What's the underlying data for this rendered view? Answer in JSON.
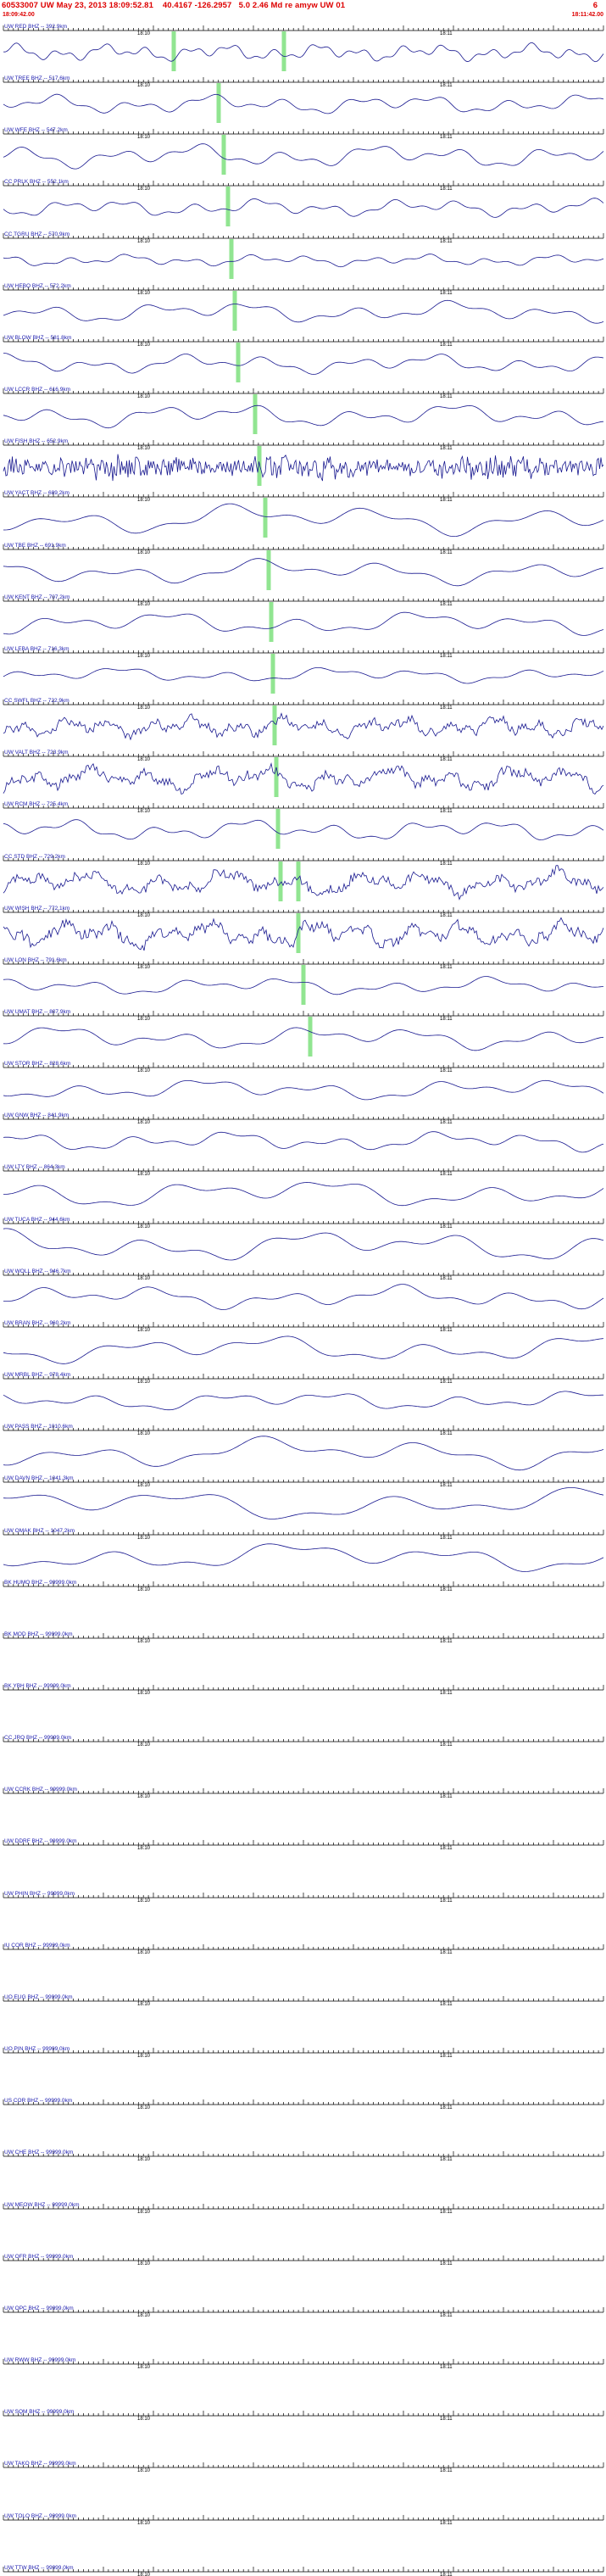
{
  "header": {
    "event_line": "60533007 UW May 23, 2013 18:09:52.81    40.4167 -126.2957   5.0 2.46 Md re amyw UW 01",
    "trailing_flag": "6",
    "start_time": "18:09:42.00",
    "end_time": "18:11:42.00"
  },
  "timeline": {
    "minute_labels": [
      "18:10",
      "18:11"
    ],
    "window_seconds": 120
  },
  "colors": {
    "trace": "#18188f",
    "label": "#2020b0",
    "ruler": "#000000",
    "pick": "#7ee07e",
    "background": "#ffffff",
    "header_red": "#dd0000"
  },
  "channels": [
    {
      "label": "UW RED BHZ -- 392.9km",
      "style": "smooth",
      "amp": 9,
      "freq": 14,
      "picks": [
        205,
        335
      ]
    },
    {
      "label": "UW TREE BHZ -- 517.6km",
      "style": "smooth",
      "amp": 10,
      "freq": 8,
      "picks": [
        258
      ]
    },
    {
      "label": "UW WFE BHZ -- 547.2km",
      "style": "smooth",
      "amp": 12,
      "freq": 7,
      "picks": [
        264
      ]
    },
    {
      "label": "CC PRLK BHZ -- 552.1km",
      "style": "smooth",
      "amp": 9,
      "freq": 9,
      "picks": [
        269
      ]
    },
    {
      "label": "CC TGRU BHZ -- 570.9km",
      "style": "smooth",
      "amp": 6,
      "freq": 10,
      "picks": [
        273
      ]
    },
    {
      "label": "UW HEBO BHZ -- 572.2km",
      "style": "smooth",
      "amp": 11,
      "freq": 6,
      "picks": [
        277
      ]
    },
    {
      "label": "UW BLOW BHZ -- 581.8km",
      "style": "smooth",
      "amp": 10,
      "freq": 7,
      "picks": [
        281
      ]
    },
    {
      "label": "UW LCCR BHZ -- 616.9km",
      "style": "smooth",
      "amp": 12,
      "freq": 6,
      "picks": [
        301
      ]
    },
    {
      "label": "UW FISH BHZ -- 652.9km",
      "style": "hf",
      "amp": 13,
      "freq": 40,
      "picks": [
        306
      ]
    },
    {
      "label": "UW YACT BHZ -- 689.2km",
      "style": "smooth",
      "amp": 16,
      "freq": 4,
      "picks": [
        313
      ]
    },
    {
      "label": "UW TBE BHZ -- 691.9km",
      "style": "smooth",
      "amp": 13,
      "freq": 4.5,
      "picks": [
        317
      ]
    },
    {
      "label": "UW KENT BHZ -- 707.2km",
      "style": "smooth",
      "amp": 12,
      "freq": 5,
      "picks": [
        320
      ]
    },
    {
      "label": "UW LEBA BHZ -- 716.3km",
      "style": "smooth",
      "amp": 8,
      "freq": 6,
      "picks": [
        322
      ]
    },
    {
      "label": "CC SWFL BHZ -- 722.9km",
      "style": "noisy",
      "amp": 10,
      "freq": 14,
      "picks": [
        324
      ]
    },
    {
      "label": "UW VALT BHZ -- 723.9km",
      "style": "noisy",
      "amp": 12,
      "freq": 10,
      "picks": [
        326
      ]
    },
    {
      "label": "UW RCM BHZ -- 725.4km",
      "style": "smooth",
      "amp": 11,
      "freq": 7,
      "picks": [
        328
      ]
    },
    {
      "label": "CC STD BHZ -- 729.2km",
      "style": "noisy",
      "amp": 12,
      "freq": 9,
      "picks": [
        331,
        352
      ]
    },
    {
      "label": "UW WISH BHZ -- 772.1km",
      "style": "noisy",
      "amp": 13,
      "freq": 12,
      "picks": [
        352
      ]
    },
    {
      "label": "UW LON BHZ -- 791.6km",
      "style": "smooth",
      "amp": 9,
      "freq": 6,
      "picks": [
        358
      ]
    },
    {
      "label": "UW UMAT BHZ -- 807.9km",
      "style": "smooth",
      "amp": 12,
      "freq": 5,
      "picks": [
        366
      ]
    },
    {
      "label": "UW STOR BHZ -- 828.6km",
      "style": "smooth",
      "amp": 11,
      "freq": 5,
      "picks": []
    },
    {
      "label": "UW GNW BHZ -- 841.9km",
      "style": "smooth",
      "amp": 10,
      "freq": 6,
      "picks": []
    },
    {
      "label": "UW LTY BHZ -- 864.3km",
      "style": "smooth",
      "amp": 15,
      "freq": 4,
      "picks": []
    },
    {
      "label": "UW TUCA BHZ -- 944.6km",
      "style": "smooth",
      "amp": 16,
      "freq": 4,
      "picks": []
    },
    {
      "label": "UW WOLL BHZ -- 946.7km",
      "style": "smooth",
      "amp": 12,
      "freq": 5,
      "picks": []
    },
    {
      "label": "UW BRAN BHZ -- 960.2km",
      "style": "smooth",
      "amp": 14,
      "freq": 4,
      "picks": []
    },
    {
      "label": "UW MRBL BHZ -- 978.4km",
      "style": "smooth",
      "amp": 10,
      "freq": 5,
      "picks": []
    },
    {
      "label": "UW PASS BHZ -- 1010.6km",
      "style": "smooth",
      "amp": 16,
      "freq": 3.5,
      "picks": []
    },
    {
      "label": "UW DAVN BHZ -- 1041.3km",
      "style": "smooth",
      "amp": 17,
      "freq": 3,
      "picks": []
    },
    {
      "label": "UW OMAK BHZ -- 1047.2km",
      "style": "smooth",
      "amp": 15,
      "freq": 3.5,
      "picks": []
    },
    {
      "label": "BK HUMO BHZ -- 99999.0km",
      "style": "flat",
      "amp": 0,
      "freq": 0,
      "picks": []
    },
    {
      "label": "BK MOD BHZ -- 99999.0km",
      "style": "flat",
      "amp": 0,
      "freq": 0,
      "picks": []
    },
    {
      "label": "BK YBH BHZ -- 99999.0km",
      "style": "flat",
      "amp": 0,
      "freq": 0,
      "picks": []
    },
    {
      "label": "CC JRO BHZ -- 99999.0km",
      "style": "flat",
      "amp": 0,
      "freq": 0,
      "picks": []
    },
    {
      "label": "UW CCRK BHZ -- 99999.0km",
      "style": "flat",
      "amp": 0,
      "freq": 0,
      "picks": []
    },
    {
      "label": "UW DDRF BHZ -- 99999.0km",
      "style": "flat",
      "amp": 0,
      "freq": 0,
      "picks": []
    },
    {
      "label": "UW PHIN BHZ -- 99999.0km",
      "style": "flat",
      "amp": 0,
      "freq": 0,
      "picks": []
    },
    {
      "label": "IU COR BHZ -- 99999.0km",
      "style": "flat",
      "amp": 0,
      "freq": 0,
      "picks": []
    },
    {
      "label": "UO EUG BHZ -- 99999.0km",
      "style": "flat",
      "amp": 0,
      "freq": 0,
      "picks": []
    },
    {
      "label": "UO PIN BHZ -- 99999.0km",
      "style": "flat",
      "amp": 0,
      "freq": 0,
      "picks": []
    },
    {
      "label": "US COR BHZ -- 99999.0km",
      "style": "flat",
      "amp": 0,
      "freq": 0,
      "picks": []
    },
    {
      "label": "UW CHE BHZ -- 99999.0km",
      "style": "flat",
      "amp": 0,
      "freq": 0,
      "picks": []
    },
    {
      "label": "UW MEOW BHZ -- 99999.0km",
      "style": "flat",
      "amp": 0,
      "freq": 0,
      "picks": []
    },
    {
      "label": "UW OFR BHZ -- 99999.0km",
      "style": "flat",
      "amp": 0,
      "freq": 0,
      "picks": []
    },
    {
      "label": "UW OPC BHZ -- 99999.0km",
      "style": "flat",
      "amp": 0,
      "freq": 0,
      "picks": []
    },
    {
      "label": "UW RWW BHZ -- 99999.0km",
      "style": "flat",
      "amp": 0,
      "freq": 0,
      "picks": []
    },
    {
      "label": "UW SQM BHZ -- 99999.0km",
      "style": "flat",
      "amp": 0,
      "freq": 0,
      "picks": []
    },
    {
      "label": "UW TAKO BHZ -- 99999.0km",
      "style": "flat",
      "amp": 0,
      "freq": 0,
      "picks": []
    },
    {
      "label": "UW TOLO BHZ -- 99999.0km",
      "style": "flat",
      "amp": 0,
      "freq": 0,
      "picks": []
    },
    {
      "label": "UW TTW BHZ -- 99999.0km",
      "style": "flat",
      "amp": 0,
      "freq": 0,
      "picks": []
    }
  ]
}
